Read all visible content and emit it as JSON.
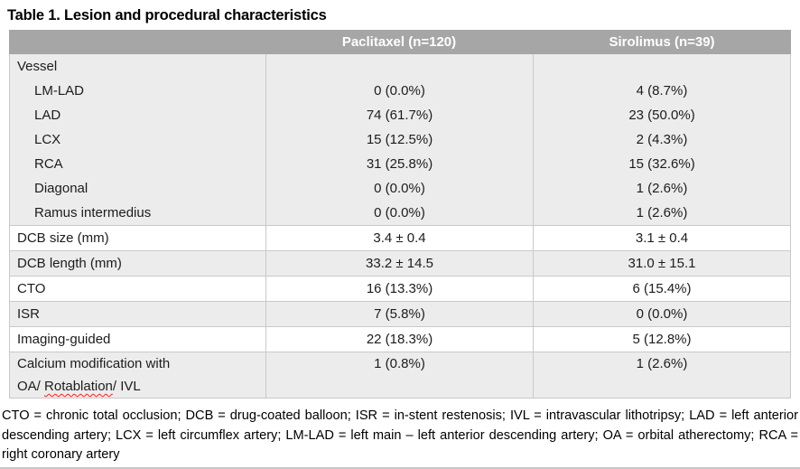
{
  "title": "Table 1. Lesion and procedural characteristics",
  "colors": {
    "header_bg": "#a6a6a6",
    "header_text": "#ffffff",
    "stripe_bg": "#ececec",
    "border": "#c9c9c9",
    "spellcheck_underline": "#ff1f1f"
  },
  "table": {
    "columns": [
      "",
      "Paclitaxel (n=120)",
      "Sirolimus (n=39)"
    ],
    "vessel": {
      "label": "Vessel",
      "items": [
        {
          "label": "LM-LAD",
          "paclitaxel": "0 (0.0%)",
          "sirolimus": "4 (8.7%)"
        },
        {
          "label": "LAD",
          "paclitaxel": "74 (61.7%)",
          "sirolimus": "23 (50.0%)"
        },
        {
          "label": "LCX",
          "paclitaxel": "15 (12.5%)",
          "sirolimus": "2 (4.3%)"
        },
        {
          "label": "RCA",
          "paclitaxel": "31 (25.8%)",
          "sirolimus": "15 (32.6%)"
        },
        {
          "label": "Diagonal",
          "paclitaxel": "0 (0.0%)",
          "sirolimus": "1 (2.6%)"
        },
        {
          "label": "Ramus intermedius",
          "paclitaxel": "0 (0.0%)",
          "sirolimus": "1 (2.6%)"
        }
      ]
    },
    "rows": [
      {
        "label": "DCB size (mm)",
        "paclitaxel": "3.4 ± 0.4",
        "sirolimus": "3.1 ± 0.4"
      },
      {
        "label": "DCB length (mm)",
        "paclitaxel": "33.2 ± 14.5",
        "sirolimus": "31.0 ± 15.1"
      },
      {
        "label": "CTO",
        "paclitaxel": "16 (13.3%)",
        "sirolimus": "6 (15.4%)"
      },
      {
        "label": "ISR",
        "paclitaxel": "7 (5.8%)",
        "sirolimus": "0 (0.0%)"
      },
      {
        "label": "Imaging-guided",
        "paclitaxel": "22 (18.3%)",
        "sirolimus": "5 (12.8%)"
      }
    ],
    "calcium_row": {
      "label_line1": "Calcium modification with",
      "label_line2_pre": "OA/ ",
      "label_line2_word": "Rotablation",
      "label_line2_post": "/ IVL",
      "paclitaxel": "1 (0.8%)",
      "sirolimus": "1 (2.6%)"
    }
  },
  "footnote": "CTO = chronic total occlusion; DCB = drug-coated balloon; ISR = in-stent restenosis; IVL = intravascular lithotripsy; LAD = left anterior descending artery; LCX = left circumflex artery; LM-LAD = left main – left anterior descending artery; OA = orbital atherectomy; RCA = right coronary artery"
}
